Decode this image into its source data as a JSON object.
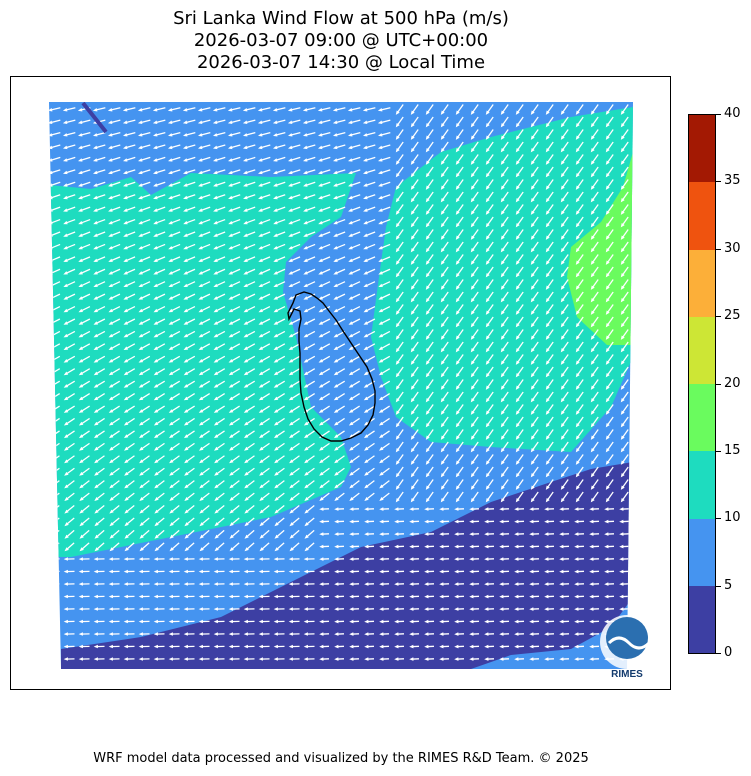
{
  "title_lines": [
    "Sri Lanka Wind Flow at 500 hPa (m/s)",
    "2026-03-07 09:00 @ UTC+00:00",
    "2026-03-07 14:30 @ Local Time"
  ],
  "colorbar": {
    "ticks": [
      "0",
      "5",
      "10",
      "15",
      "20",
      "25",
      "30",
      "35",
      "40"
    ],
    "bands": [
      {
        "range": [
          0,
          5
        ],
        "color": "#3d3fa3"
      },
      {
        "range": [
          5,
          10
        ],
        "color": "#4594f0"
      },
      {
        "range": [
          10,
          15
        ],
        "color": "#1edcbf"
      },
      {
        "range": [
          15,
          20
        ],
        "color": "#6afb5e"
      },
      {
        "range": [
          20,
          25
        ],
        "color": "#cde635"
      },
      {
        "range": [
          25,
          30
        ],
        "color": "#fcaf39"
      },
      {
        "range": [
          30,
          35
        ],
        "color": "#ef530f"
      },
      {
        "range": [
          35,
          40
        ],
        "color": "#a31903"
      }
    ]
  },
  "map": {
    "region": "Sri Lanka",
    "vector_color": "#ffffff",
    "coastline_color": "#000000",
    "logo_text": "RIMES"
  },
  "footer": "WRF model data processed and visualized by the RIMES R&D Team. © 2025"
}
